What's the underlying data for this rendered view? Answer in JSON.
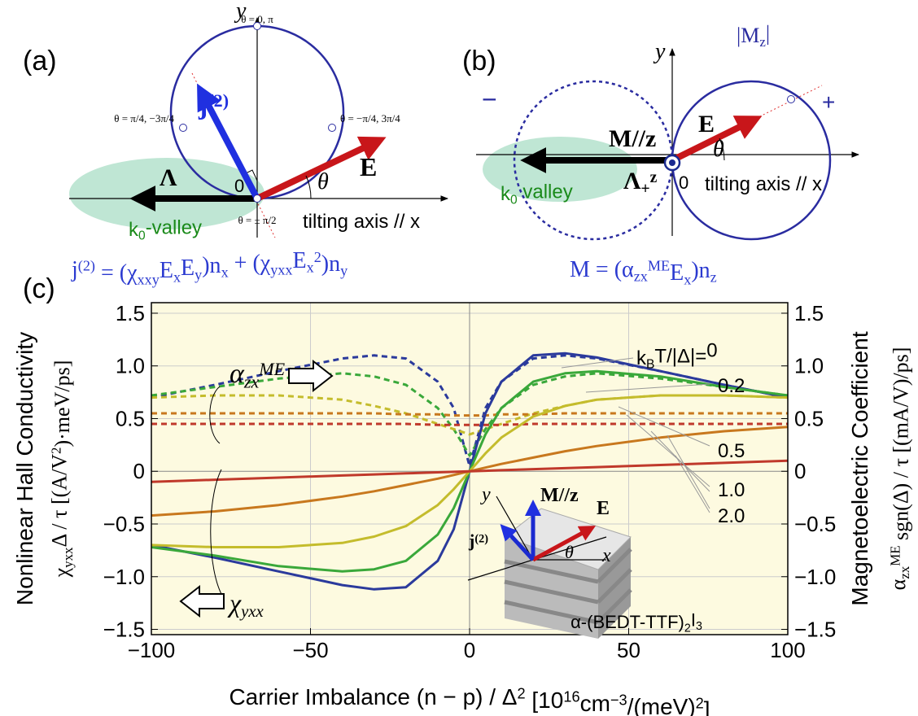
{
  "panel_a": {
    "label": "(a)",
    "y_axis": "y",
    "theta_top": "θ = 0, π",
    "theta_left": "θ = π/4, −3π/4",
    "theta_right": "θ = −π/4, 3π/4",
    "theta_bottom": "θ = ± π/2",
    "j_label": [
      {
        "text": "j"
      },
      {
        "text": "(2)",
        "style": "sup"
      }
    ],
    "lambda_label": "Λ",
    "origin": "0",
    "e_label": "E",
    "theta": "θ",
    "valley": [
      {
        "text": "k"
      },
      {
        "text": "0",
        "style": "sub"
      },
      {
        "text": "-valley"
      }
    ],
    "tilting_axis": "tilting axis // x",
    "equation": [
      {
        "text": "j"
      },
      {
        "text": "(2)",
        "style": "sup"
      },
      {
        "text": " = (χ"
      },
      {
        "text": "xxy",
        "style": "sub"
      },
      {
        "text": "E"
      },
      {
        "text": "x",
        "style": "sub"
      },
      {
        "text": "E"
      },
      {
        "text": "y",
        "style": "sub"
      },
      {
        "text": ")n"
      },
      {
        "text": "x",
        "style": "sub"
      },
      {
        "text": " + (χ"
      },
      {
        "text": "yxx",
        "style": "sub"
      },
      {
        "text": "E"
      },
      {
        "text": "x",
        "style": "sub"
      },
      {
        "text": "2",
        "style": "sup"
      },
      {
        "text": ")n"
      },
      {
        "text": "y",
        "style": "sub"
      }
    ]
  },
  "panel_b": {
    "label": "(b)",
    "y_axis": "y",
    "mz": [
      {
        "text": "|M"
      },
      {
        "text": "z",
        "style": "sub"
      },
      {
        "text": "|"
      }
    ],
    "minus": "−",
    "plus": "+",
    "m_label": "M//z",
    "e_label": "E",
    "theta": "θ",
    "lambda_label": [
      {
        "text": "Λ"
      },
      {
        "text": "+",
        "style": "sub"
      },
      {
        "text": "z",
        "style": "sup"
      }
    ],
    "valley": [
      {
        "text": "k"
      },
      {
        "text": "0",
        "style": "sub"
      },
      {
        "text": " valley"
      }
    ],
    "origin": "0",
    "tilting_axis": "tilting axis // x",
    "equation": [
      {
        "text": "M = (α"
      },
      {
        "text": "zx",
        "style": "sub"
      },
      {
        "text": "ME",
        "style": "sup"
      },
      {
        "text": "E"
      },
      {
        "text": "x",
        "style": "sub"
      },
      {
        "text": ")n"
      },
      {
        "text": "z",
        "style": "sub"
      }
    ]
  },
  "panel_c_label": "(c)",
  "chart_data": {
    "type": "line",
    "ylabel": "Nonlinear Hall Conductivity",
    "ylabel_formula": [
      {
        "text": "χ"
      },
      {
        "text": "yxx",
        "style": "sub"
      },
      {
        "text": "Δ / τ  [(A/V"
      },
      {
        "text": "2",
        "style": "sup"
      },
      {
        "text": ")·meV/ps]"
      }
    ],
    "y2label": "Magnetoelectric Coefficient",
    "y2label_formula": [
      {
        "text": "α"
      },
      {
        "text": "zx",
        "style": "sub"
      },
      {
        "text": "ME",
        "style": "sup"
      },
      {
        "text": " sgn(Δ) / τ  [(mA/V)/ps]"
      }
    ],
    "xlabel": [
      {
        "text": "Carrier Imbalance (n − p) / Δ"
      },
      {
        "text": "2",
        "style": "sup"
      },
      {
        "text": "  [10"
      },
      {
        "text": "16",
        "style": "sup"
      },
      {
        "text": "cm"
      },
      {
        "text": "−3",
        "style": "sup"
      },
      {
        "text": "/(meV)"
      },
      {
        "text": "2",
        "style": "sup"
      },
      {
        "text": "]"
      }
    ],
    "alpha_annotation": [
      {
        "text": "α"
      },
      {
        "text": "zx",
        "style": "sub"
      },
      {
        "text": "ME",
        "style": "sup"
      }
    ],
    "chi_annotation": [
      {
        "text": "χ"
      },
      {
        "text": "yxx",
        "style": "sub"
      }
    ],
    "legend_prefix": [
      {
        "text": "k"
      },
      {
        "text": "B",
        "style": "sub"
      },
      {
        "text": "T/|Δ|="
      }
    ],
    "inset": {
      "y": "y",
      "m": "M//z",
      "e": "E",
      "j": [
        {
          "text": "j"
        },
        {
          "text": "(2)",
          "style": "sup"
        }
      ],
      "theta": "θ",
      "x": "x",
      "material": [
        {
          "text": "α-(BEDT-TTF)"
        },
        {
          "text": "2",
          "style": "sub"
        },
        {
          "text": "I"
        },
        {
          "text": "3",
          "style": "sub"
        }
      ]
    },
    "x": [
      -100,
      -80,
      -60,
      -40,
      -30,
      -20,
      -10,
      -5,
      0,
      5,
      10,
      20,
      30,
      40,
      60,
      80,
      100
    ],
    "xlim": [
      -100,
      100
    ],
    "xticks": [
      {
        "value": -100,
        "label": "−100"
      },
      {
        "value": -50,
        "label": "−50"
      },
      0,
      50,
      100
    ],
    "ylim": [
      -1.55,
      1.6
    ],
    "yticks": [
      {
        "value": -1.5,
        "label": "−1.5"
      },
      {
        "value": -1,
        "label": "−1.0"
      },
      {
        "value": -0.5,
        "label": "−0.5"
      },
      0,
      0.5,
      {
        "value": 1,
        "label": "1.0"
      },
      1.5
    ],
    "y2lim": [
      -1.55,
      1.6
    ],
    "y2ticks": [
      {
        "value": -1.5,
        "label": "−1.5"
      },
      {
        "value": -1,
        "label": "−1.0"
      },
      {
        "value": -0.5,
        "label": "−0.5"
      },
      0,
      0.5,
      {
        "value": 1,
        "label": "1.0"
      },
      1.5
    ],
    "grid": true,
    "series": [
      {
        "name": "0",
        "color": "#2b3a9c",
        "values": [
          -0.7,
          -0.82,
          -0.95,
          -1.08,
          -1.12,
          -1.1,
          -0.85,
          -0.55,
          0,
          0.55,
          0.85,
          1.1,
          1.12,
          1.08,
          0.95,
          0.82,
          0.7
        ]
      },
      {
        "name": "0.2",
        "color": "#3aa83a",
        "values": [
          -0.72,
          -0.8,
          -0.9,
          -0.95,
          -0.93,
          -0.85,
          -0.6,
          -0.35,
          0,
          0.35,
          0.6,
          0.85,
          0.93,
          0.95,
          0.9,
          0.8,
          0.72
        ]
      },
      {
        "name": "0.5",
        "color": "#c4bc2c",
        "values": [
          -0.7,
          -0.72,
          -0.72,
          -0.68,
          -0.62,
          -0.52,
          -0.32,
          -0.17,
          0,
          0.17,
          0.32,
          0.52,
          0.62,
          0.68,
          0.72,
          0.72,
          0.7
        ]
      },
      {
        "name": "1.0",
        "color": "#c8781e",
        "values": [
          -0.42,
          -0.38,
          -0.32,
          -0.24,
          -0.19,
          -0.13,
          -0.07,
          -0.035,
          0,
          0.035,
          0.07,
          0.13,
          0.19,
          0.24,
          0.32,
          0.38,
          0.42
        ]
      },
      {
        "name": "2.0",
        "color": "#c0392b",
        "values": [
          -0.1,
          -0.08,
          -0.06,
          -0.04,
          -0.03,
          -0.02,
          -0.01,
          -0.005,
          0,
          0.005,
          0.01,
          0.02,
          0.03,
          0.04,
          0.06,
          0.08,
          0.1
        ]
      }
    ],
    "y2_series": [
      {
        "axis": "y2",
        "color": "#2b3a9c",
        "values": [
          0.7,
          0.82,
          0.95,
          1.07,
          1.1,
          1.07,
          0.85,
          0.6,
          0.05,
          0.6,
          0.85,
          1.07,
          1.1,
          1.07,
          0.95,
          0.82,
          0.7
        ]
      },
      {
        "axis": "y2",
        "color": "#3aa83a",
        "values": [
          0.72,
          0.8,
          0.88,
          0.93,
          0.9,
          0.82,
          0.6,
          0.4,
          0.15,
          0.4,
          0.6,
          0.82,
          0.9,
          0.93,
          0.88,
          0.8,
          0.72
        ]
      },
      {
        "axis": "y2",
        "color": "#c4bc2c",
        "values": [
          0.7,
          0.72,
          0.72,
          0.68,
          0.62,
          0.55,
          0.45,
          0.4,
          0.35,
          0.4,
          0.45,
          0.55,
          0.62,
          0.68,
          0.72,
          0.72,
          0.7
        ]
      },
      {
        "axis": "y2",
        "color": "#c8781e",
        "values": [
          0.55,
          0.55,
          0.55,
          0.55,
          0.55,
          0.54,
          0.54,
          0.53,
          0.53,
          0.53,
          0.54,
          0.54,
          0.55,
          0.55,
          0.55,
          0.55,
          0.55
        ]
      },
      {
        "axis": "y2",
        "color": "#c0392b",
        "values": [
          0.45,
          0.45,
          0.45,
          0.45,
          0.45,
          0.45,
          0.44,
          0.44,
          0.44,
          0.44,
          0.44,
          0.45,
          0.45,
          0.45,
          0.45,
          0.45,
          0.45
        ]
      }
    ]
  }
}
